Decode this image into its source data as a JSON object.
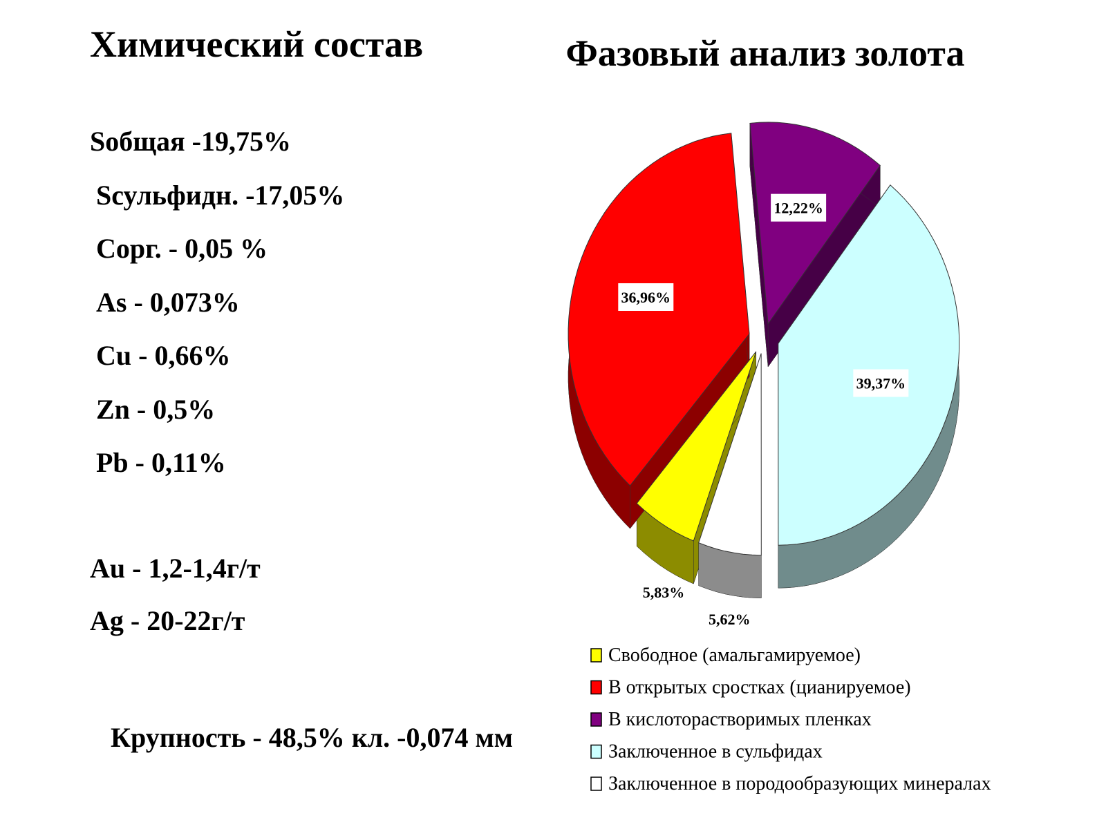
{
  "composition": {
    "title": "Химический состав",
    "lines": [
      "Sобщая -19,75%",
      "Sсульфидн. -17,05%",
      "Сорг. - 0,05 %",
      "As  - 0,073%",
      "Cu  -   0,66%",
      "Zn   - 0,5%",
      "Pb - 0,11%"
    ],
    "metals": [
      "Au - 1,2-1,4г/т",
      "Ag - 20-22г/т"
    ],
    "size": "Крупность  - 48,5% кл. -0,074 мм"
  },
  "chart_data": {
    "type": "pie",
    "title": "Фазовый анализ золота",
    "categories": [
      "Свободное (амальгамируемое)",
      "В открытых сростках  (цианируемое)",
      "В кислоторастворимых пленках",
      "Заключенное в сульфидах",
      "Заключенное в породообразующих минералах"
    ],
    "values": [
      5.83,
      36.96,
      12.22,
      39.37,
      5.62
    ],
    "value_labels": [
      "5,83%",
      "36,96%",
      "12,22%",
      "39,37%",
      "5,62%"
    ],
    "colors": [
      "#ffff00",
      "#ff0000",
      "#800080",
      "#ccffff",
      "#ffffff"
    ]
  }
}
